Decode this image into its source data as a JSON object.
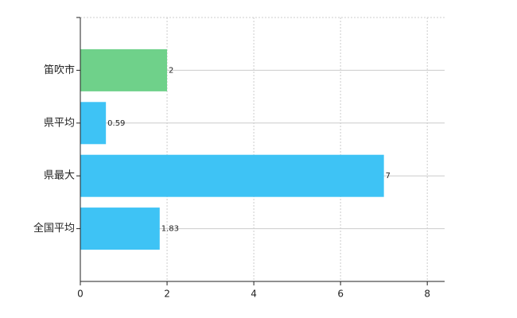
{
  "chart_data": {
    "type": "bar",
    "orientation": "horizontal",
    "categories": [
      "笛吹市",
      "県平均",
      "県最大",
      "全国平均"
    ],
    "values": [
      2,
      0.59,
      7,
      1.83
    ],
    "colors": [
      "#6fd18a",
      "#3ec3f5",
      "#3ec3f5",
      "#3ec3f5"
    ],
    "xlim": [
      0,
      8.4
    ],
    "xticks": [
      0,
      2,
      4,
      6,
      8
    ],
    "grid": true
  }
}
